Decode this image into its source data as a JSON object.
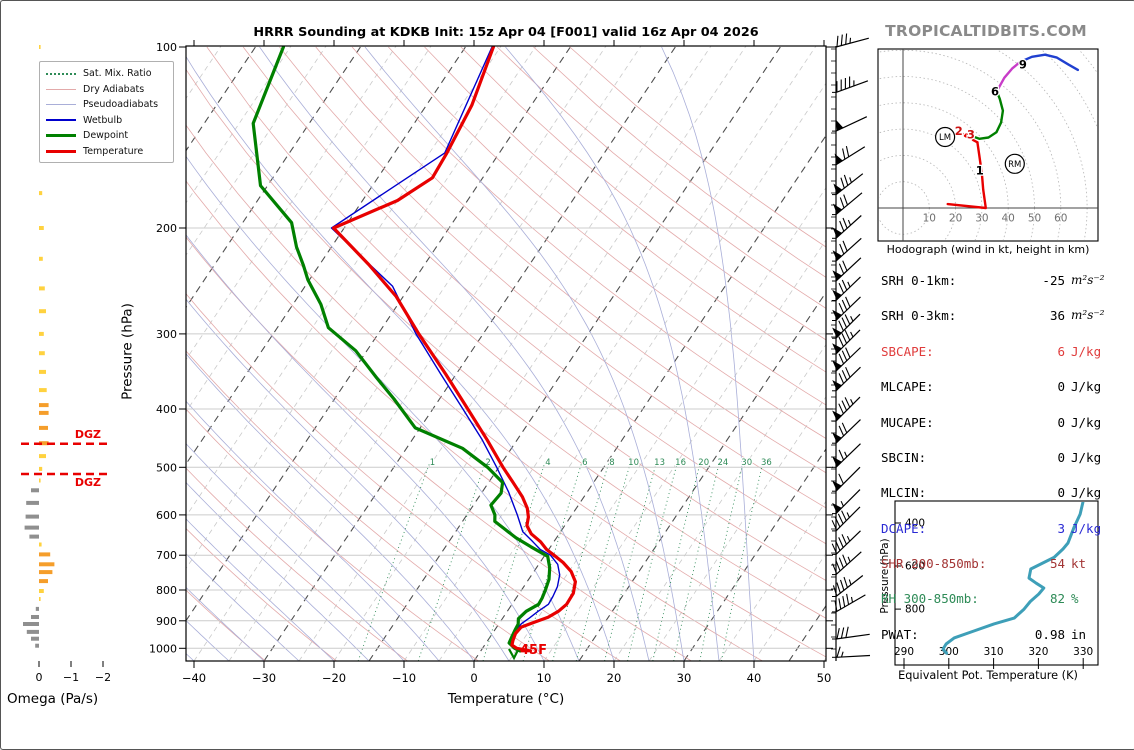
{
  "title": "HRRR Sounding at KDKB Init: 15z Apr 04 [F001] valid 16z Apr 04 2026",
  "branding": "TROPICALTIDBITS.COM",
  "colors": {
    "temperature": "#e80000",
    "dewpoint": "#008000",
    "wetbulb": "#0000cd",
    "dry_adiabat": "#e3aaaa",
    "pseudoadiabat": "#a9aed8",
    "mix_ratio": "#2e8b57",
    "isotherm_major": "#4f4f4f",
    "isotherm_minor": "#c9c9c9",
    "gridline": "#cccccc",
    "omega_up_strong": "#F59E2B",
    "omega_up_weak": "#FFD23F",
    "omega_down": "#8f8f8f",
    "dgz": "#e80000",
    "thetae_curve": "#3e9fb8",
    "branding_gray": "#8a8a8a"
  },
  "chart_data": [
    {
      "id": "skewt",
      "type": "line",
      "xlabel": "Temperature (°C)",
      "ylabel": "Pressure (hPa)",
      "xlim": [
        -40,
        50
      ],
      "plim": [
        100,
        1050
      ],
      "x_ticks": [
        -40,
        -30,
        -20,
        -10,
        0,
        10,
        20,
        30,
        40,
        50
      ],
      "p_ticks": [
        100,
        200,
        300,
        400,
        500,
        600,
        700,
        800,
        900,
        1000
      ],
      "mix_ratio_values": [
        1,
        2,
        4,
        6,
        8,
        10,
        13,
        16,
        20,
        24,
        30,
        36
      ],
      "surface_label": "45F",
      "legend": [
        {
          "label": "Sat. Mix. Ratio",
          "color": "#2e8b57",
          "style": "dotted",
          "w": 2
        },
        {
          "label": "Dry Adiabats",
          "color": "#e3aaaa",
          "style": "solid",
          "w": 1.5
        },
        {
          "label": "Pseudoadiabats",
          "color": "#a9aed8",
          "style": "solid",
          "w": 1.5
        },
        {
          "label": "Wetbulb",
          "color": "#0000cd",
          "style": "solid",
          "w": 2
        },
        {
          "label": "Dewpoint",
          "color": "#008000",
          "style": "solid",
          "w": 3.5
        },
        {
          "label": "Temperature",
          "color": "#e80000",
          "style": "solid",
          "w": 3.5
        }
      ],
      "series": [
        {
          "name": "Wetbulb",
          "color": "#0000cd",
          "width": 1.4,
          "points": [
            [
              100,
              -56.2
            ],
            [
              150,
              -52.8
            ],
            [
              200,
              -61.8
            ],
            [
              250,
              -47.5
            ],
            [
              300,
              -39.6
            ],
            [
              350,
              -32.2
            ],
            [
              400,
              -25.7
            ],
            [
              450,
              -20
            ],
            [
              500,
              -15.3
            ],
            [
              550,
              -11.2
            ],
            [
              600,
              -7.8
            ],
            [
              640,
              -5.4
            ],
            [
              665,
              -3
            ],
            [
              685,
              -1.2
            ],
            [
              700,
              0.8
            ],
            [
              725,
              2.7
            ],
            [
              755,
              4
            ],
            [
              790,
              4.8
            ],
            [
              820,
              5.1
            ],
            [
              845,
              5.2
            ],
            [
              868,
              4.4
            ],
            [
              890,
              3.8
            ],
            [
              910,
              3.2
            ],
            [
              930,
              3.1
            ],
            [
              955,
              3.2
            ],
            [
              980,
              3.4
            ],
            [
              1000,
              4.4
            ],
            [
              1010,
              6.2
            ]
          ]
        },
        {
          "name": "Dewpoint",
          "color": "#008000",
          "width": 3.2,
          "points": [
            [
              100,
              -86
            ],
            [
              134,
              -83
            ],
            [
              170,
              -76
            ],
            [
              196,
              -68
            ],
            [
              215,
              -65
            ],
            [
              231,
              -62.2
            ],
            [
              244,
              -60.2
            ],
            [
              268,
              -56
            ],
            [
              293,
              -52.7
            ],
            [
              320,
              -46.6
            ],
            [
              355,
              -41
            ],
            [
              385,
              -36.5
            ],
            [
              430,
              -30.7
            ],
            [
              465,
              -22
            ],
            [
              500,
              -16.6
            ],
            [
              530,
              -13
            ],
            [
              552,
              -12.2
            ],
            [
              578,
              -12.5
            ],
            [
              600,
              -11
            ],
            [
              615,
              -10.4
            ],
            [
              632,
              -8.4
            ],
            [
              655,
              -5.8
            ],
            [
              678,
              -2.8
            ],
            [
              703,
              0.5
            ],
            [
              735,
              1.9
            ],
            [
              768,
              2.9
            ],
            [
              800,
              3.4
            ],
            [
              825,
              3.7
            ],
            [
              845,
              3.8
            ],
            [
              868,
              2.7
            ],
            [
              893,
              2.3
            ],
            [
              912,
              2.8
            ],
            [
              932,
              2.9
            ],
            [
              958,
              3.1
            ],
            [
              980,
              3.3
            ],
            [
              1000,
              4.6
            ],
            [
              1010,
              5.6
            ]
          ]
        },
        {
          "name": "Temperature",
          "color": "#e80000",
          "width": 3.2,
          "points": [
            [
              100,
              -56
            ],
            [
              125,
              -53.5
            ],
            [
              150,
              -52.5
            ],
            [
              165,
              -52.2
            ],
            [
              180,
              -55
            ],
            [
              200,
              -61.5
            ],
            [
              230,
              -53
            ],
            [
              260,
              -46
            ],
            [
              300,
              -39.2
            ],
            [
              350,
              -31.5
            ],
            [
              400,
              -25
            ],
            [
              450,
              -19.3
            ],
            [
              500,
              -14.4
            ],
            [
              530,
              -11.5
            ],
            [
              560,
              -8.8
            ],
            [
              585,
              -7
            ],
            [
              605,
              -6
            ],
            [
              625,
              -5.4
            ],
            [
              645,
              -4
            ],
            [
              665,
              -1.9
            ],
            [
              685,
              -0.3
            ],
            [
              700,
              1.3
            ],
            [
              720,
              3.3
            ],
            [
              745,
              5.3
            ],
            [
              775,
              6.9
            ],
            [
              810,
              7.7
            ],
            [
              845,
              7.8
            ],
            [
              868,
              7.3
            ],
            [
              888,
              6.4
            ],
            [
              905,
              4.9
            ],
            [
              922,
              3.5
            ],
            [
              945,
              3.3
            ],
            [
              970,
              3.6
            ],
            [
              988,
              3.9
            ],
            [
              1000,
              4.9
            ],
            [
              1010,
              7.1
            ]
          ]
        }
      ],
      "wind_barbs": [
        [
          100,
          35,
          15
        ],
        [
          119,
          45,
          20
        ],
        [
          138,
          50,
          25
        ],
        [
          157,
          70,
          32
        ],
        [
          176,
          75,
          38
        ],
        [
          190,
          70,
          40
        ],
        [
          208,
          75,
          42
        ],
        [
          227,
          70,
          42
        ],
        [
          245,
          70,
          43
        ],
        [
          264,
          75,
          44
        ],
        [
          285,
          80,
          44
        ],
        [
          305,
          85,
          45
        ],
        [
          324,
          85,
          45
        ],
        [
          346,
          80,
          44
        ],
        [
          373,
          80,
          44
        ],
        [
          419,
          85,
          45
        ],
        [
          456,
          70,
          44
        ],
        [
          500,
          65,
          44
        ],
        [
          548,
          60,
          45
        ],
        [
          597,
          55,
          45
        ],
        [
          638,
          45,
          45
        ],
        [
          698,
          43,
          44
        ],
        [
          754,
          45,
          42
        ],
        [
          820,
          45,
          38
        ],
        [
          870,
          45,
          30
        ],
        [
          965,
          30,
          8
        ],
        [
          1035,
          15,
          3
        ]
      ]
    },
    {
      "id": "hodograph",
      "type": "line",
      "caption": "Hodograph (wind in kt, height in km)",
      "x_ticks": [
        10,
        20,
        30,
        40,
        50,
        60
      ],
      "ring_step_kt": 10,
      "segments": [
        {
          "color": "#e80000",
          "dash": false,
          "pts": [
            [
              17,
              1.5
            ],
            [
              31.5,
              0
            ],
            [
              30.5,
              7
            ],
            [
              30,
              13
            ],
            [
              29,
              20
            ],
            [
              28.3,
              25
            ]
          ]
        },
        {
          "color": "#e80000",
          "dash": true,
          "pts": [
            [
              28.3,
              25
            ],
            [
              21.5,
              28.5
            ],
            [
              25.8,
              27.5
            ]
          ]
        },
        {
          "color": "#008000",
          "dash": false,
          "pts": [
            [
              25.8,
              27.5
            ],
            [
              29,
              26.3
            ],
            [
              32.5,
              26.8
            ],
            [
              35.5,
              28.8
            ],
            [
              37.3,
              32.5
            ],
            [
              38,
              37
            ],
            [
              36.8,
              41.5
            ],
            [
              35.8,
              44
            ],
            [
              36,
              45
            ]
          ]
        },
        {
          "color": "#c83cc8",
          "dash": false,
          "pts": [
            [
              36,
              45
            ],
            [
              38.5,
              49.5
            ],
            [
              41.5,
              53
            ],
            [
              44.5,
              55.5
            ]
          ]
        },
        {
          "color": "#2040d0",
          "dash": false,
          "pts": [
            [
              44.5,
              55.5
            ],
            [
              49,
              57.5
            ],
            [
              54,
              58.3
            ],
            [
              58.5,
              57.2
            ],
            [
              63,
              54.5
            ],
            [
              66.5,
              52.5
            ]
          ]
        }
      ],
      "height_labels": [
        {
          "text": "1",
          "u": 29.2,
          "v": 14.2,
          "color": "#000000"
        },
        {
          "text": "2",
          "u": 21.2,
          "v": 29.2,
          "color": "#cc1111"
        },
        {
          "text": "3",
          "u": 25.8,
          "v": 28.0,
          "color": "#cc1111"
        },
        {
          "text": "6",
          "u": 35.0,
          "v": 44.3,
          "color": "#000000"
        },
        {
          "text": "9",
          "u": 45.6,
          "v": 54.6,
          "color": "#000000"
        }
      ],
      "markers": [
        {
          "text": "LM",
          "u": 16.0,
          "v": 27.0
        },
        {
          "text": "RM",
          "u": 42.5,
          "v": 16.8
        }
      ]
    },
    {
      "id": "omega",
      "type": "bar",
      "xlabel": "Omega (Pa/s)",
      "ticks": [
        0,
        -1,
        -2
      ],
      "dgz_label": "DGZ",
      "dgz_pressures": [
        457,
        513
      ],
      "bars": [
        [
          100,
          -0.05
        ],
        [
          175,
          -0.1
        ],
        [
          200,
          -0.15
        ],
        [
          225,
          -0.12
        ],
        [
          252,
          -0.18
        ],
        [
          275,
          -0.22
        ],
        [
          300,
          -0.15
        ],
        [
          323,
          -0.18
        ],
        [
          347,
          -0.22
        ],
        [
          372,
          -0.24
        ],
        [
          394,
          -0.3
        ],
        [
          406,
          -0.3
        ],
        [
          430,
          -0.28
        ],
        [
          456,
          -0.3
        ],
        [
          479,
          -0.22
        ],
        [
          503,
          -0.1
        ],
        [
          526,
          -0.05
        ],
        [
          546,
          0.25
        ],
        [
          573,
          0.4
        ],
        [
          604,
          0.42
        ],
        [
          630,
          0.45
        ],
        [
          652,
          0.3
        ],
        [
          672,
          -0.08
        ],
        [
          698,
          -0.35
        ],
        [
          725,
          -0.48
        ],
        [
          747,
          -0.42
        ],
        [
          773,
          -0.28
        ],
        [
          803,
          -0.15
        ],
        [
          828,
          -0.05
        ],
        [
          860,
          0.1
        ],
        [
          887,
          0.25
        ],
        [
          911,
          0.5
        ],
        [
          939,
          0.38
        ],
        [
          964,
          0.25
        ],
        [
          990,
          0.12
        ]
      ]
    },
    {
      "id": "thetae",
      "type": "line",
      "xlabel": "Equivalent Pot. Temperature (K)",
      "ylabel": "Pressure (hPa)",
      "x_ticks": [
        290,
        300,
        310,
        320,
        330
      ],
      "y_ticks": [
        400,
        600,
        800
      ],
      "profile": [
        [
          298,
          330
        ],
        [
          360,
          329.3
        ],
        [
          423,
          327.9
        ],
        [
          493,
          326.6
        ],
        [
          521,
          325.5
        ],
        [
          560,
          323.5
        ],
        [
          614,
          318.3
        ],
        [
          656,
          317.9
        ],
        [
          680,
          319.5
        ],
        [
          702,
          321.2
        ],
        [
          730,
          320.1
        ],
        [
          765,
          318.2
        ],
        [
          800,
          316.8
        ],
        [
          842,
          314.6
        ],
        [
          869,
          310.1
        ],
        [
          902,
          305.6
        ],
        [
          934,
          301.2
        ],
        [
          962,
          299.4
        ],
        [
          986,
          298.7
        ],
        [
          1005,
          299.5
        ]
      ]
    }
  ],
  "stats": {
    "rows": [
      {
        "label": "SRH 0-1km:",
        "value": "-25",
        "unit": "m²s⁻²",
        "color": "#000000",
        "math": true
      },
      {
        "label": "SRH 0-3km:",
        "value": "36",
        "unit": "m²s⁻²",
        "color": "#000000",
        "math": true
      },
      {
        "label": "SBCAPE:",
        "value": "6",
        "unit": "J/kg",
        "color": "#e03c3c",
        "math": false
      },
      {
        "label": "MLCAPE:",
        "value": "0",
        "unit": "J/kg",
        "color": "#000000",
        "math": false
      },
      {
        "label": "MUCAPE:",
        "value": "0",
        "unit": "J/kg",
        "color": "#000000",
        "math": false
      },
      {
        "label": "SBCIN:",
        "value": "0",
        "unit": "J/kg",
        "color": "#000000",
        "math": false
      },
      {
        "label": "MLCIN:",
        "value": "0",
        "unit": "J/kg",
        "color": "#000000",
        "math": false
      },
      {
        "label": "DCAPE:",
        "value": "3",
        "unit": "J/kg",
        "color": "#2a2ad4",
        "math": false
      },
      {
        "label": "SHR 200-850mb:",
        "value": "54",
        "unit": "kt",
        "color": "#a33535",
        "math": false
      },
      {
        "label": "RH 300-850mb:",
        "value": "82",
        "unit": "%",
        "color": "#2e8b57",
        "math": false
      },
      {
        "label": "PWAT:",
        "value": "0.98",
        "unit": "in",
        "color": "#000000",
        "math": false
      }
    ]
  }
}
